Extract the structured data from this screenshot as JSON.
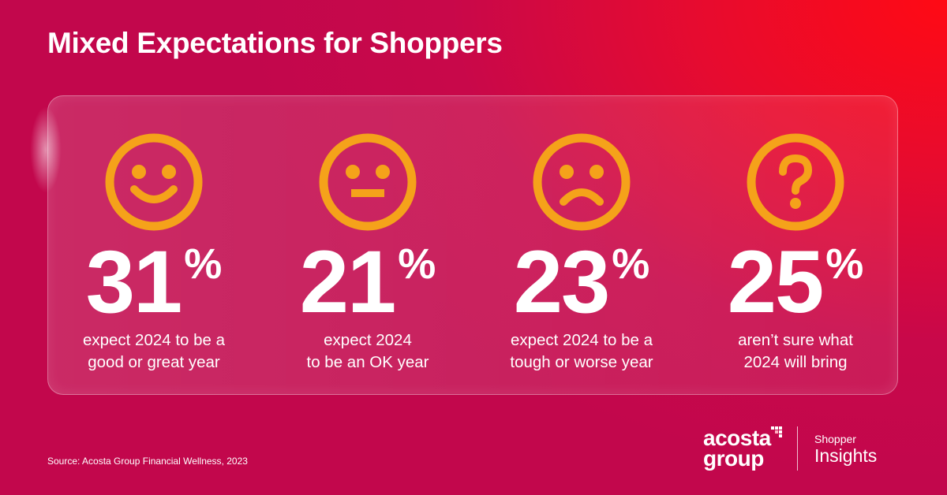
{
  "title": "Mixed Expectations for Shoppers",
  "accent_color": "#f5a21a",
  "stats": [
    {
      "icon": "happy-face-icon",
      "value": "31",
      "unit": "%",
      "line1": "expect 2024 to be a",
      "line2": "good or great year"
    },
    {
      "icon": "neutral-face-icon",
      "value": "21",
      "unit": "%",
      "line1": "expect 2024",
      "line2": "to be an OK year"
    },
    {
      "icon": "sad-face-icon",
      "value": "23",
      "unit": "%",
      "line1": "expect 2024 to be a",
      "line2": "tough or worse year"
    },
    {
      "icon": "question-mark-icon",
      "value": "25",
      "unit": "%",
      "line1": "aren’t sure what",
      "line2": "2024 will bring"
    }
  ],
  "source": "Source: Acosta Group Financial Wellness, 2023",
  "logo": {
    "line1": "acosta",
    "line2": "group"
  },
  "subbrand": {
    "line1": "Shopper",
    "line2": "Insights"
  }
}
